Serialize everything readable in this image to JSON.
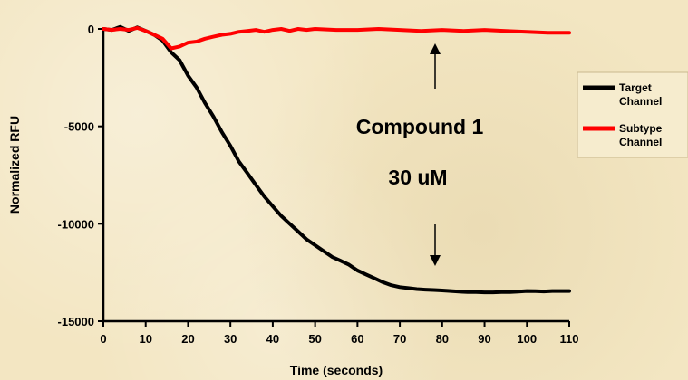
{
  "chart_data": {
    "type": "line",
    "xlabel": "Time (seconds)",
    "ylabel": "Normalized RFU",
    "xlim": [
      0,
      110
    ],
    "ylim": [
      -15000,
      0
    ],
    "xticks": [
      "0",
      "10",
      "20",
      "30",
      "40",
      "50",
      "60",
      "70",
      "80",
      "90",
      "100",
      "110"
    ],
    "yticks": [
      "0",
      "-5000",
      "-10000",
      "-15000"
    ],
    "grid": false,
    "legend_position": "right",
    "annotations": [
      "Compound 1",
      "30 uM"
    ],
    "series": [
      {
        "name": "Target Channel",
        "color": "#000000",
        "x": [
          0,
          2,
          4,
          6,
          8,
          10,
          12,
          14,
          16,
          18,
          20,
          22,
          24,
          26,
          28,
          30,
          32,
          34,
          36,
          38,
          40,
          42,
          44,
          46,
          48,
          50,
          52,
          54,
          56,
          58,
          60,
          62,
          64,
          66,
          68,
          70,
          72,
          74,
          76,
          78,
          80,
          82,
          84,
          86,
          88,
          90,
          92,
          94,
          96,
          98,
          100,
          102,
          104,
          106,
          108,
          110
        ],
        "y": [
          0,
          -50,
          100,
          -100,
          80,
          -100,
          -300,
          -600,
          -1200,
          -1600,
          -2400,
          -3000,
          -3800,
          -4500,
          -5300,
          -6000,
          -6800,
          -7400,
          -8000,
          -8600,
          -9100,
          -9600,
          -10000,
          -10400,
          -10800,
          -11100,
          -11400,
          -11700,
          -11900,
          -12100,
          -12400,
          -12600,
          -12800,
          -13000,
          -13150,
          -13250,
          -13300,
          -13350,
          -13380,
          -13400,
          -13420,
          -13450,
          -13480,
          -13500,
          -13500,
          -13520,
          -13520,
          -13500,
          -13500,
          -13480,
          -13450,
          -13460,
          -13470,
          -13450,
          -13450,
          -13450
        ]
      },
      {
        "name": "Subtype Channel",
        "color": "#ff0000",
        "x": [
          0,
          2,
          4,
          6,
          8,
          10,
          12,
          14,
          16,
          18,
          20,
          22,
          24,
          26,
          28,
          30,
          32,
          34,
          36,
          38,
          40,
          42,
          44,
          46,
          48,
          50,
          55,
          60,
          65,
          70,
          75,
          80,
          85,
          90,
          95,
          100,
          105,
          108,
          110
        ],
        "y": [
          0,
          -50,
          0,
          -50,
          50,
          -100,
          -300,
          -500,
          -1000,
          -900,
          -700,
          -650,
          -500,
          -400,
          -300,
          -250,
          -150,
          -100,
          -50,
          -150,
          -50,
          0,
          -100,
          0,
          -50,
          0,
          -50,
          -50,
          0,
          -50,
          -100,
          -50,
          -100,
          -50,
          -100,
          -150,
          -200,
          -200,
          -200
        ]
      }
    ]
  }
}
